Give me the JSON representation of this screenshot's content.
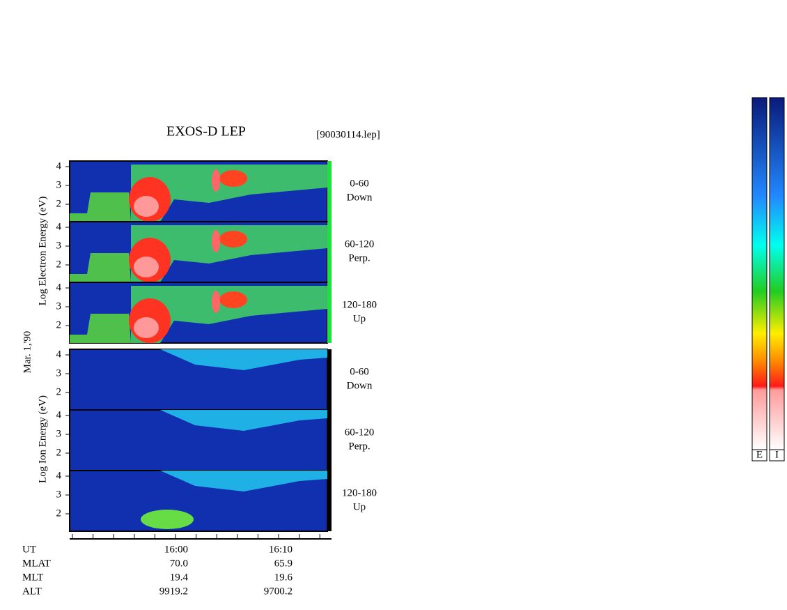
{
  "title": "EXOS-D LEP",
  "file": "[90030114.lep]",
  "electron_axis_label": "Log  Electron Energy (eV)",
  "ion_axis_label": "Log  Ion  Energy (eV)",
  "date": "Mar. 1,'90",
  "energy_ticks": [
    "2",
    "3",
    "4"
  ],
  "electron_panels": [
    {
      "range": "0-60",
      "direction": "Down"
    },
    {
      "range": "60-120",
      "direction": "Perp."
    },
    {
      "range": "120-180",
      "direction": "Up"
    }
  ],
  "ion_panels": [
    {
      "range": "0-60",
      "direction": "Down"
    },
    {
      "range": "60-120",
      "direction": "Perp."
    },
    {
      "range": "120-180",
      "direction": "Up"
    }
  ],
  "orbit_rows": [
    {
      "label": "UT",
      "values": [
        "16:00",
        "16:10"
      ]
    },
    {
      "label": "MLAT",
      "values": [
        "70.0",
        "65.9"
      ]
    },
    {
      "label": "MLT",
      "values": [
        "19.4",
        "19.6"
      ]
    },
    {
      "label": "ALT",
      "values": [
        "9919.2",
        "9700.2"
      ]
    }
  ],
  "colorbars": [
    "E",
    "I"
  ]
}
